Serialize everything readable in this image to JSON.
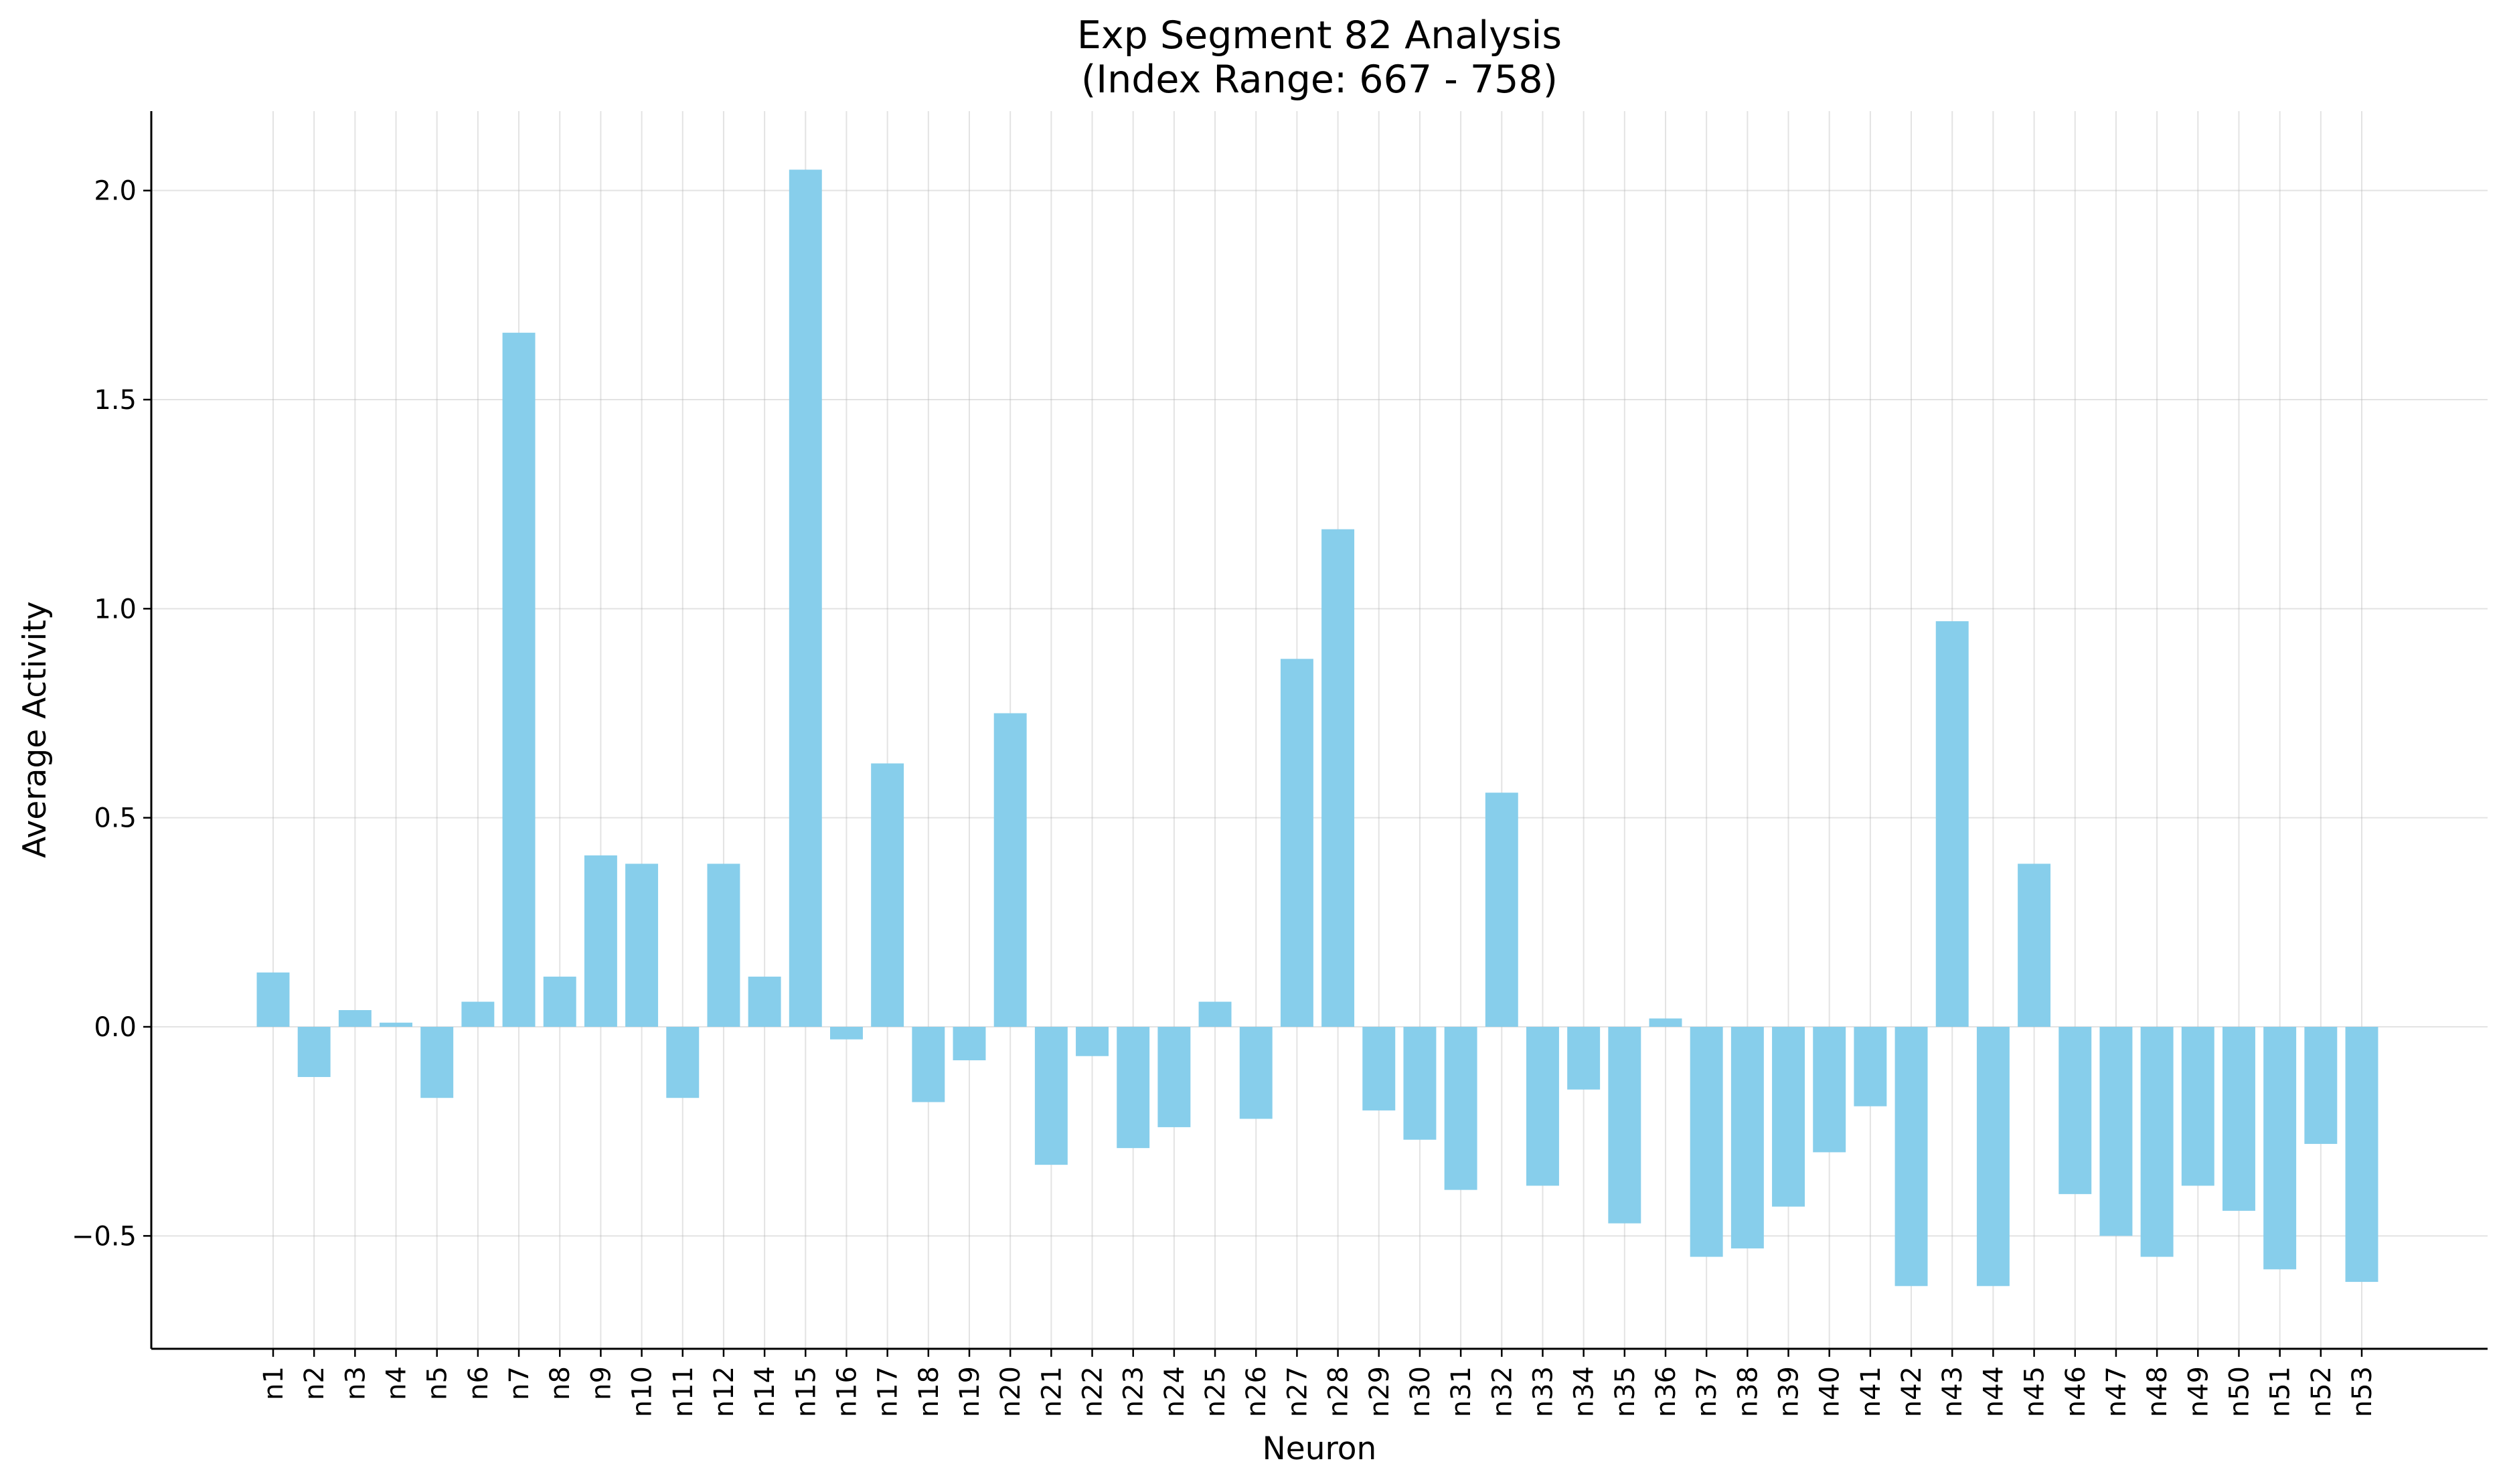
{
  "chart_data": {
    "type": "bar",
    "title": "Exp Segment 82 Analysis",
    "subtitle": "(Index Range: 667 - 758)",
    "xlabel": "Neuron",
    "ylabel": "Average Activity",
    "ylim": [
      -0.77,
      2.19
    ],
    "yticks": [
      -0.5,
      0.0,
      0.5,
      1.0,
      1.5,
      2.0
    ],
    "ytick_labels": [
      "−0.5",
      "0.0",
      "0.5",
      "1.0",
      "1.5",
      "2.0"
    ],
    "grid": true,
    "bar_color": "#87ceeb",
    "categories": [
      "n1",
      "n2",
      "n3",
      "n4",
      "n5",
      "n6",
      "n7",
      "n8",
      "n9",
      "n10",
      "n11",
      "n12",
      "n14",
      "n15",
      "n16",
      "n17",
      "n18",
      "n19",
      "n20",
      "n21",
      "n22",
      "n23",
      "n24",
      "n25",
      "n26",
      "n27",
      "n28",
      "n29",
      "n30",
      "n31",
      "n32",
      "n33",
      "n34",
      "n35",
      "n36",
      "n37",
      "n38",
      "n39",
      "n40",
      "n41",
      "n42",
      "n43",
      "n44",
      "n45",
      "n46",
      "n47",
      "n48",
      "n49",
      "n50",
      "n51",
      "n52",
      "n53"
    ],
    "values": [
      0.13,
      -0.12,
      0.04,
      0.01,
      -0.17,
      0.06,
      1.66,
      0.12,
      0.41,
      0.39,
      -0.17,
      0.39,
      0.12,
      2.05,
      -0.03,
      0.63,
      -0.18,
      -0.08,
      0.75,
      -0.33,
      -0.07,
      -0.29,
      -0.24,
      0.06,
      -0.22,
      0.88,
      1.19,
      -0.2,
      -0.27,
      -0.39,
      0.56,
      -0.38,
      -0.15,
      -0.47,
      0.02,
      -0.55,
      -0.53,
      -0.43,
      -0.3,
      -0.19,
      -0.62,
      0.97,
      -0.62,
      0.39,
      -0.4,
      -0.5,
      -0.55,
      -0.38,
      -0.44,
      -0.58,
      -0.28,
      -0.61
    ]
  }
}
